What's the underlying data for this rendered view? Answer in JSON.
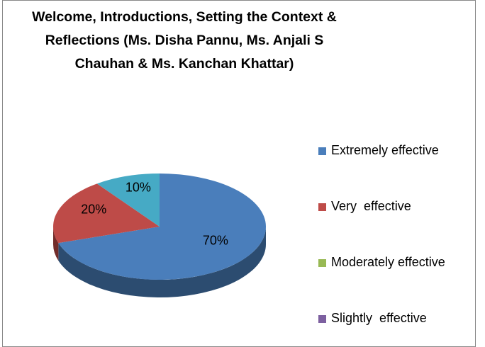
{
  "chart_data": {
    "type": "pie",
    "title": "Welcome, Introductions, Setting the Context & Reflections (Ms. Disha Pannu, Ms. Anjali S Chauhan & Ms. Kanchan Khattar)",
    "categories": [
      "Extremely effective",
      "Very  effective",
      "Moderately effective",
      "Slightly  effective",
      null
    ],
    "values": [
      70,
      20,
      0,
      0,
      10
    ],
    "value_labels": [
      "70%",
      "20%",
      null,
      null,
      "10%"
    ],
    "colors": [
      "#4a7ebb",
      "#be4b48",
      "#98b954",
      "#7d60a0",
      "#46aac5"
    ],
    "legend": "right",
    "three_d": true
  }
}
